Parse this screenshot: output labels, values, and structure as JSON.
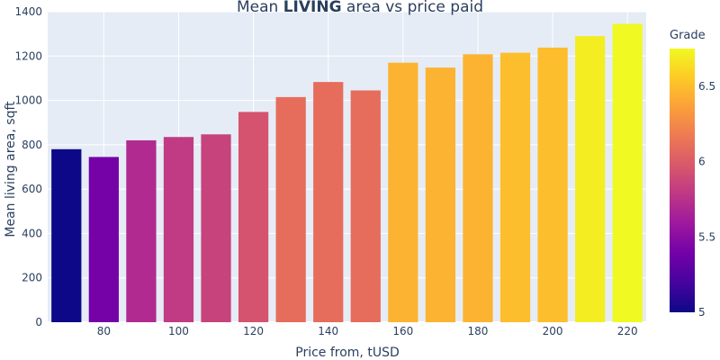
{
  "chart_data": {
    "type": "bar",
    "title_prefix": "Mean ",
    "title_bold": "LIVING",
    "title_suffix": " area vs price paid",
    "xlabel": "Price from, tUSD",
    "ylabel": "Mean living area, sqft",
    "x": [
      70,
      80,
      90,
      100,
      110,
      120,
      130,
      140,
      150,
      160,
      170,
      180,
      190,
      200,
      210,
      220
    ],
    "values": [
      780,
      745,
      820,
      835,
      847,
      948,
      1015,
      1083,
      1045,
      1170,
      1148,
      1208,
      1215,
      1238,
      1290,
      1345
    ],
    "grade": [
      5.0,
      5.4,
      5.7,
      5.8,
      5.85,
      5.95,
      6.1,
      6.1,
      6.1,
      6.45,
      6.45,
      6.45,
      6.5,
      6.5,
      6.7,
      6.75
    ],
    "xlim": [
      65,
      225
    ],
    "ylim": [
      0,
      1400
    ],
    "xticks": [
      80,
      100,
      120,
      140,
      160,
      180,
      200,
      220
    ],
    "yticks": [
      0,
      200,
      400,
      600,
      800,
      1000,
      1200,
      1400
    ],
    "colorbar": {
      "title": "Grade",
      "range": [
        5,
        6.75
      ],
      "ticks": [
        5,
        5.5,
        6,
        6.5
      ],
      "colors": [
        "#0d0887",
        "#46039f",
        "#7201a8",
        "#9c179e",
        "#bd3786",
        "#d8576b",
        "#ed7953",
        "#fb9f3a",
        "#fdca26",
        "#f0f921"
      ]
    },
    "plot_bg": "#e5ecf6",
    "grid": true
  }
}
